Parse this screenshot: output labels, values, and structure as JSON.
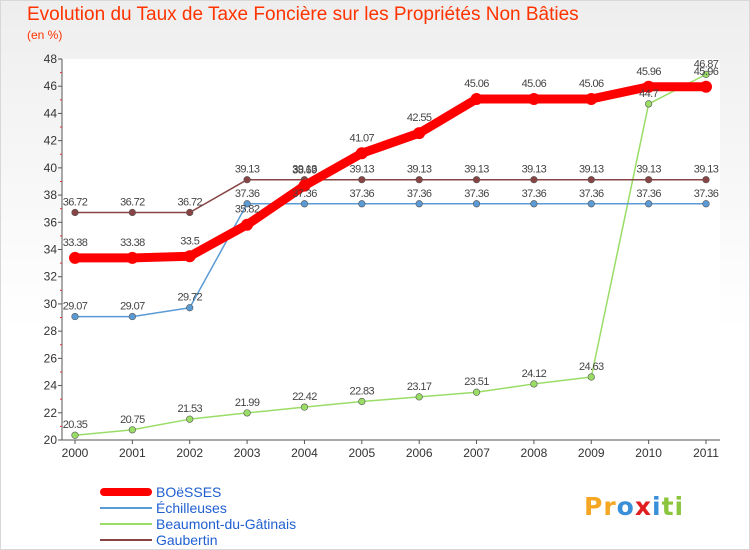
{
  "header": {
    "title": "Evolution du Taux de Taxe Foncière sur les Propriétés Non Bâties",
    "subtitle": "(en %)"
  },
  "logo": {
    "text": "Proxiti",
    "letters": [
      "P",
      "r",
      "o",
      "x",
      "i",
      "t",
      "i"
    ],
    "colors": [
      "#f5a623",
      "#f5a623",
      "#3a8fd9",
      "#e02020",
      "#3a8fd9",
      "#8cc63f",
      "#8cc63f"
    ]
  },
  "chart_data": {
    "type": "line",
    "categories": [
      "2000",
      "2001",
      "2002",
      "2003",
      "2004",
      "2005",
      "2006",
      "2007",
      "2008",
      "2009",
      "2010",
      "2011"
    ],
    "ylim": [
      20,
      48
    ],
    "yticks": [
      "20",
      "22",
      "24",
      "26",
      "28",
      "30",
      "32",
      "34",
      "36",
      "38",
      "40",
      "42",
      "44",
      "46",
      "48"
    ],
    "grid": false,
    "legend_position": "bottom-left",
    "series": [
      {
        "name": "BOëSSES",
        "color": "#ff0000",
        "values": [
          33.38,
          33.38,
          33.5,
          35.82,
          38.69,
          41.07,
          42.55,
          45.06,
          45.06,
          45.06,
          45.96,
          45.96
        ],
        "labels": [
          "33.38",
          "33.38",
          "33.5",
          "35.82",
          "38.69",
          "41.07",
          "42.55",
          "45.06",
          "45.06",
          "45.06",
          "45.96",
          "45.96"
        ]
      },
      {
        "name": "Échilleuses",
        "color": "#5b9bd5",
        "values": [
          29.07,
          29.07,
          29.72,
          37.36,
          37.36,
          37.36,
          37.36,
          37.36,
          37.36,
          37.36,
          37.36,
          37.36
        ],
        "labels": [
          "29.07",
          "29.07",
          "29.72",
          "37.36",
          "37.36",
          "37.36",
          "37.36",
          "37.36",
          "37.36",
          "37.36",
          "37.36",
          "37.36"
        ]
      },
      {
        "name": "Beaumont-du-Gâtinais",
        "color": "#99dd66",
        "values": [
          20.35,
          20.75,
          21.53,
          21.99,
          22.42,
          22.83,
          23.17,
          23.51,
          24.12,
          24.63,
          44.7,
          46.87
        ],
        "labels": [
          "20.35",
          "20.75",
          "21.53",
          "21.99",
          "22.42",
          "22.83",
          "23.17",
          "23.51",
          "24.12",
          "24.63",
          "44.7",
          "46.87"
        ]
      },
      {
        "name": "Gaubertin",
        "color": "#884444",
        "values": [
          36.72,
          36.72,
          36.72,
          39.13,
          39.13,
          39.13,
          39.13,
          39.13,
          39.13,
          39.13,
          39.13,
          39.13
        ],
        "labels": [
          "36.72",
          "36.72",
          "36.72",
          "39.13",
          "39.13",
          "39.13",
          "39.13",
          "39.13",
          "39.13",
          "39.13",
          "39.13",
          "39.13"
        ]
      }
    ]
  }
}
